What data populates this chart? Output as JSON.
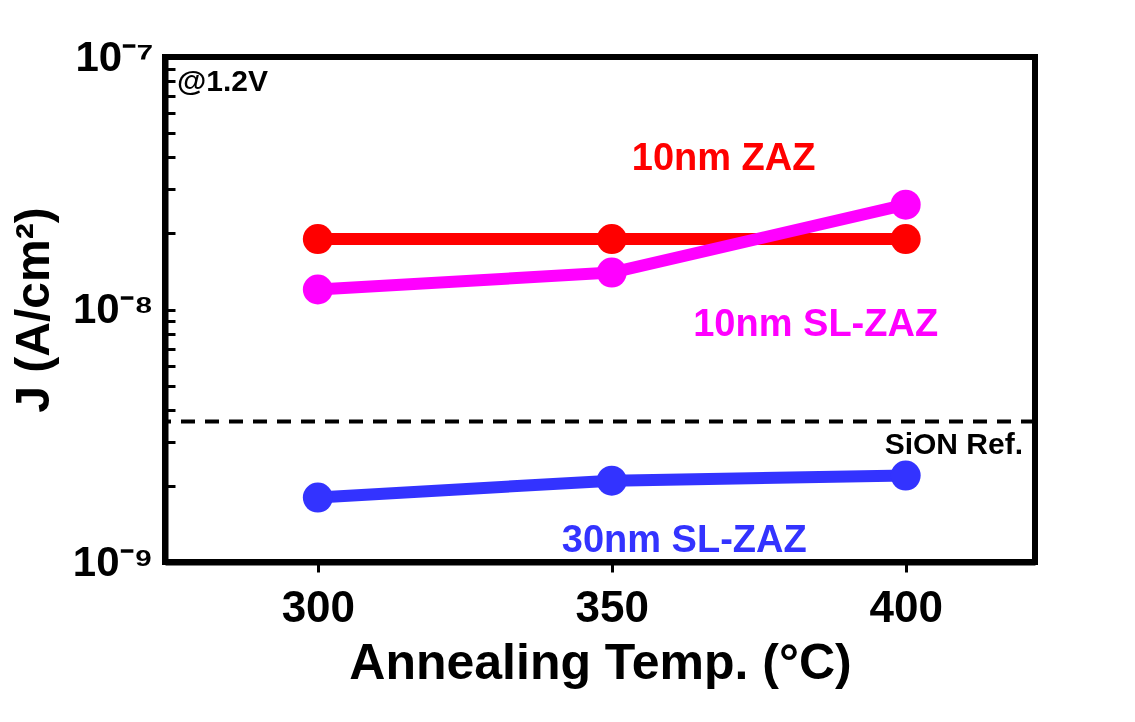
{
  "chart_data": {
    "type": "line",
    "xlabel": "Annealing Temp. (°C)",
    "ylabel": "J (A/cm²)",
    "log": true,
    "grid": false,
    "marker": "circle",
    "line_style": "solid",
    "x": [
      300,
      350,
      400
    ],
    "xlim": [
      274,
      422
    ],
    "xticks": [
      300,
      350,
      400
    ],
    "ylim": [
      1e-09,
      1e-07
    ],
    "yticks": [
      {
        "value": 1e-09,
        "label": "10⁻⁹"
      },
      {
        "value": 2e-09,
        "label": null
      },
      {
        "value": 3e-09,
        "label": null
      },
      {
        "value": 4e-09,
        "label": null
      },
      {
        "value": 5e-09,
        "label": null
      },
      {
        "value": 6e-09,
        "label": null
      },
      {
        "value": 7e-09,
        "label": null
      },
      {
        "value": 8e-09,
        "label": null
      },
      {
        "value": 9e-09,
        "label": null
      },
      {
        "value": 1e-08,
        "label": "10⁻⁸"
      },
      {
        "value": 2e-08,
        "label": null
      },
      {
        "value": 3e-08,
        "label": null
      },
      {
        "value": 4e-08,
        "label": null
      },
      {
        "value": 5e-08,
        "label": null
      },
      {
        "value": 6e-08,
        "label": null
      },
      {
        "value": 7e-08,
        "label": null
      },
      {
        "value": 8e-08,
        "label": null
      },
      {
        "value": 9e-08,
        "label": null
      },
      {
        "value": 1e-07,
        "label": "10⁻⁷"
      }
    ],
    "series": [
      {
        "name": "10nm ZAZ",
        "color": "#ff0000",
        "values": [
          1.9e-08,
          1.9e-08,
          1.9e-08
        ]
      },
      {
        "name": "10nm SL-ZAZ",
        "color": "#ff00ff",
        "values": [
          1.2e-08,
          1.4e-08,
          2.6e-08
        ]
      },
      {
        "name": "30nm SL-ZAZ",
        "color": "#3333ff",
        "values": [
          1.8e-09,
          2.1e-09,
          2.2e-09
        ]
      }
    ],
    "ref_lines": [
      {
        "axis": "y",
        "value": 3.6e-09,
        "label": "SiON Ref.",
        "color": "#000000",
        "line_style": "dashed"
      }
    ],
    "annotations": [
      "@1.2V"
    ]
  }
}
